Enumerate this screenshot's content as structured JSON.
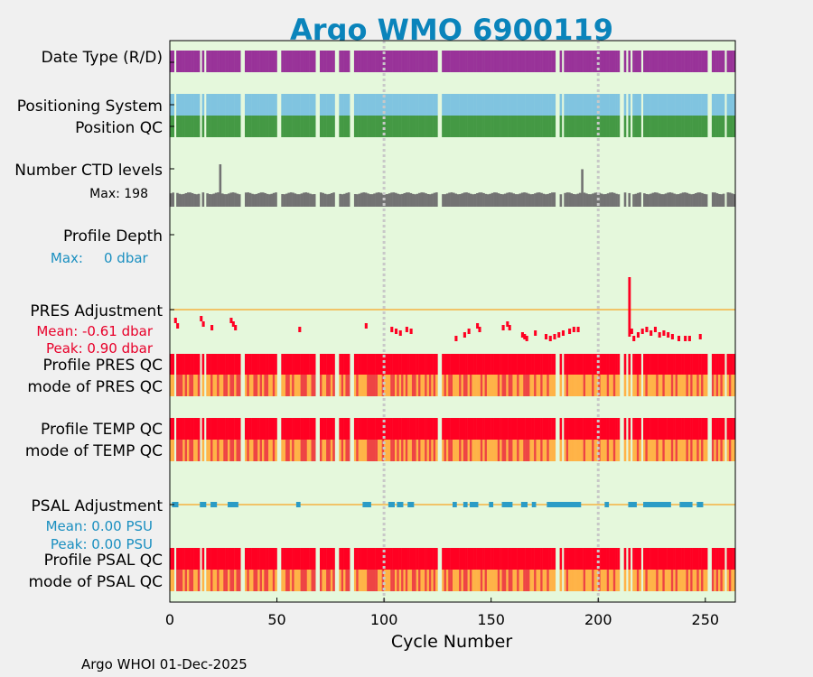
{
  "chart_data": {
    "type": "table",
    "title": "Argo WMO 6900119",
    "xlabel": "Cycle Number",
    "xlim": [
      0,
      264
    ],
    "xticks": [
      0,
      50,
      100,
      150,
      200,
      250
    ],
    "vlines": [
      100,
      200
    ],
    "footer": "Argo WHOI 01-Dec-2025",
    "rows": {
      "date_type": "Date Type (R/D)",
      "positioning": "Positioning System",
      "position_qc": "Position QC",
      "ctd_levels": "Number CTD levels",
      "ctd_max": "Max: 198",
      "profile_depth": "Profile Depth",
      "depth_max_label": "Max:",
      "depth_max_value": "0 dbar",
      "pres_adjustment": "PRES Adjustment",
      "pres_mean": "Mean: -0.61 dbar",
      "pres_peak": "Peak: 0.90 dbar",
      "profile_pres_qc": "Profile PRES QC",
      "mode_pres_qc": "mode of PRES QC",
      "profile_temp_qc": "Profile TEMP QC",
      "mode_temp_qc": "mode of TEMP QC",
      "psal_adjustment": "PSAL Adjustment",
      "psal_mean": "Mean: 0.00 PSU",
      "psal_peak": "Peak: 0.00 PSU",
      "profile_psal_qc": "Profile PSAL QC",
      "mode_psal_qc": "mode of PSAL QC"
    },
    "missing_cycles": [
      2,
      14,
      16,
      33,
      34,
      50,
      51,
      68,
      69,
      77,
      78,
      84,
      85,
      125,
      126,
      180,
      181,
      183,
      210,
      211,
      213,
      215,
      220,
      251,
      252,
      259
    ],
    "ctd_levels": {
      "max": 198,
      "base_low": 55,
      "base_high": 70,
      "spikes": [
        {
          "cycle": 23,
          "value": 198
        },
        {
          "cycle": 192,
          "value": 175
        }
      ]
    },
    "pres_adjustment": [
      {
        "cycle": 2,
        "value": -0.3
      },
      {
        "cycle": 3,
        "value": -0.45
      },
      {
        "cycle": 14,
        "value": -0.25
      },
      {
        "cycle": 15,
        "value": -0.4
      },
      {
        "cycle": 19,
        "value": -0.5
      },
      {
        "cycle": 28,
        "value": -0.3
      },
      {
        "cycle": 29,
        "value": -0.4
      },
      {
        "cycle": 30,
        "value": -0.5
      },
      {
        "cycle": 60,
        "value": -0.55
      },
      {
        "cycle": 91,
        "value": -0.45
      },
      {
        "cycle": 103,
        "value": -0.55
      },
      {
        "cycle": 105,
        "value": -0.6
      },
      {
        "cycle": 107,
        "value": -0.65
      },
      {
        "cycle": 110,
        "value": -0.55
      },
      {
        "cycle": 112,
        "value": -0.6
      },
      {
        "cycle": 133,
        "value": -0.8
      },
      {
        "cycle": 137,
        "value": -0.7
      },
      {
        "cycle": 139,
        "value": -0.6
      },
      {
        "cycle": 143,
        "value": -0.45
      },
      {
        "cycle": 144,
        "value": -0.55
      },
      {
        "cycle": 155,
        "value": -0.5
      },
      {
        "cycle": 157,
        "value": -0.4
      },
      {
        "cycle": 158,
        "value": -0.5
      },
      {
        "cycle": 164,
        "value": -0.7
      },
      {
        "cycle": 165,
        "value": -0.75
      },
      {
        "cycle": 166,
        "value": -0.8
      },
      {
        "cycle": 170,
        "value": -0.65
      },
      {
        "cycle": 175,
        "value": -0.75
      },
      {
        "cycle": 177,
        "value": -0.8
      },
      {
        "cycle": 179,
        "value": -0.75
      },
      {
        "cycle": 181,
        "value": -0.7
      },
      {
        "cycle": 183,
        "value": -0.65
      },
      {
        "cycle": 186,
        "value": -0.6
      },
      {
        "cycle": 188,
        "value": -0.55
      },
      {
        "cycle": 190,
        "value": -0.55
      },
      {
        "cycle": 214,
        "value": 0.9
      },
      {
        "cycle": 215,
        "value": -0.6
      },
      {
        "cycle": 216,
        "value": -0.8
      },
      {
        "cycle": 218,
        "value": -0.7
      },
      {
        "cycle": 220,
        "value": -0.6
      },
      {
        "cycle": 222,
        "value": -0.55
      },
      {
        "cycle": 224,
        "value": -0.65
      },
      {
        "cycle": 226,
        "value": -0.55
      },
      {
        "cycle": 228,
        "value": -0.7
      },
      {
        "cycle": 230,
        "value": -0.65
      },
      {
        "cycle": 232,
        "value": -0.7
      },
      {
        "cycle": 234,
        "value": -0.75
      },
      {
        "cycle": 237,
        "value": -0.8
      },
      {
        "cycle": 240,
        "value": -0.8
      },
      {
        "cycle": 242,
        "value": -0.8
      },
      {
        "cycle": 247,
        "value": -0.75
      }
    ],
    "pres_adj_ylim": [
      -1.0,
      1.0
    ],
    "psal_adjustment": [
      {
        "start": 1,
        "end": 3
      },
      {
        "start": 14,
        "end": 16
      },
      {
        "start": 19,
        "end": 21
      },
      {
        "start": 27,
        "end": 31
      },
      {
        "start": 59,
        "end": 60
      },
      {
        "start": 90,
        "end": 93
      },
      {
        "start": 102,
        "end": 104
      },
      {
        "start": 106,
        "end": 108
      },
      {
        "start": 111,
        "end": 113
      },
      {
        "start": 132,
        "end": 133
      },
      {
        "start": 137,
        "end": 138
      },
      {
        "start": 140,
        "end": 143
      },
      {
        "start": 149,
        "end": 150
      },
      {
        "start": 155,
        "end": 159
      },
      {
        "start": 164,
        "end": 166
      },
      {
        "start": 169,
        "end": 170
      },
      {
        "start": 176,
        "end": 191
      },
      {
        "start": 203,
        "end": 204
      },
      {
        "start": 214,
        "end": 217
      },
      {
        "start": 221,
        "end": 233
      },
      {
        "start": 238,
        "end": 243
      },
      {
        "start": 246,
        "end": 248
      }
    ],
    "mode_flag_cycles": [
      3,
      4,
      5,
      7,
      9,
      10,
      13,
      19,
      22,
      25,
      26,
      28,
      29,
      31,
      32,
      36,
      39,
      40,
      42,
      44,
      45,
      48,
      54,
      55,
      57,
      61,
      62,
      63,
      66,
      67,
      70,
      73,
      74,
      76,
      80,
      82,
      83,
      87,
      92,
      93,
      94,
      95,
      96,
      99,
      103,
      104,
      106,
      108,
      110,
      113,
      114,
      116,
      119,
      121,
      123,
      128,
      130,
      131,
      135,
      137,
      138,
      140,
      145,
      147,
      153,
      155,
      156,
      158,
      159,
      162,
      165,
      166,
      167,
      170,
      173,
      176,
      185,
      193,
      197,
      200,
      204,
      207,
      218,
      222,
      227,
      230,
      234,
      236,
      241,
      243,
      246,
      248,
      253,
      255,
      257,
      261
    ],
    "colors": {
      "title": "#0a84bb",
      "panel": "#e5f8dc",
      "date_type": "#993399",
      "positioning": "#80c4e0",
      "position_qc": "#449944",
      "ctd": "#737373",
      "qc_red": "#ff0022",
      "qc_orange": "#ffb347",
      "mode_dark": "#ee4444",
      "adj_line": "#f5b342",
      "pres_adj": "#ff0022",
      "psal_adj": "#2b9cc6",
      "info_red": "#e8002a",
      "info_blue": "#1a8fc0",
      "vline": "#c8c8c8"
    }
  }
}
